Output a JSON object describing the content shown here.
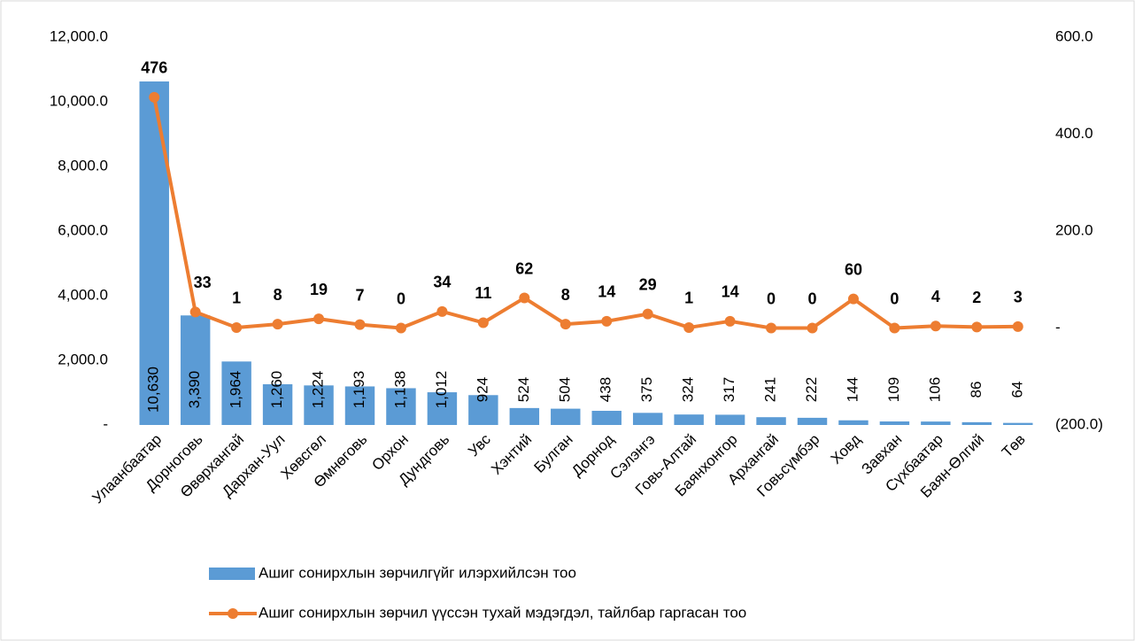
{
  "chart_data": {
    "type": "bar-line",
    "categories": [
      "Улаанбаатар",
      "Дорноговь",
      "Өвөрхангай",
      "Дархан-Уул",
      "Хөвсгөл",
      "Өмнөговь",
      "Орхон",
      "Дундговь",
      "Увс",
      "Хэнтий",
      "Булган",
      "Дорнод",
      "Сэлэнгэ",
      "Говь-Алтай",
      "Баянхонгор",
      "Архангай",
      "Говьсүмбэр",
      "Ховд",
      "Завхан",
      "Сүхбаатар",
      "Баян-Өлгий",
      "Төв"
    ],
    "series": [
      {
        "name": "Ашиг сонирхлын зөрчилгүйг илэрхийлсэн тоо",
        "type": "bar",
        "color": "#5b9bd5",
        "values": [
          10630,
          3390,
          1964,
          1260,
          1224,
          1193,
          1138,
          1012,
          924,
          524,
          504,
          438,
          375,
          324,
          317,
          241,
          222,
          144,
          109,
          106,
          86,
          64
        ],
        "value_labels": [
          "10,630",
          "3,390",
          "1,964",
          "1,260",
          "1,224",
          "1,193",
          "1,138",
          "1,012",
          "924",
          "524",
          "504",
          "438",
          "375",
          "324",
          "317",
          "241",
          "222",
          "144",
          "109",
          "106",
          "86",
          "64"
        ]
      },
      {
        "name": "Ашиг сонирхлын зөрчил үүссэн тухай мэдэгдэл, тайлбар гаргасан тоо",
        "type": "line",
        "axis": "y2",
        "color": "#ed7d31",
        "values": [
          476,
          33,
          1,
          8,
          19,
          7,
          0,
          34,
          11,
          62,
          8,
          14,
          29,
          1,
          14,
          0,
          0,
          60,
          0,
          4,
          2,
          3
        ]
      }
    ],
    "ylim": [
      0,
      12000
    ],
    "yticks": [
      {
        "value": 0,
        "label": "-"
      },
      {
        "value": 2000,
        "label": "2,000.0"
      },
      {
        "value": 4000,
        "label": "4,000.0"
      },
      {
        "value": 6000,
        "label": "6,000.0"
      },
      {
        "value": 8000,
        "label": "8,000.0"
      },
      {
        "value": 10000,
        "label": "10,000.0"
      },
      {
        "value": 12000,
        "label": "12,000.0"
      }
    ],
    "y2lim": [
      -200,
      600
    ],
    "y2ticks": [
      {
        "value": -200,
        "label": "(200.0)"
      },
      {
        "value": 0,
        "label": "-"
      },
      {
        "value": 200,
        "label": "200.0"
      },
      {
        "value": 400,
        "label": "400.0"
      },
      {
        "value": 600,
        "label": "600.0"
      }
    ],
    "legend": "bottom"
  }
}
